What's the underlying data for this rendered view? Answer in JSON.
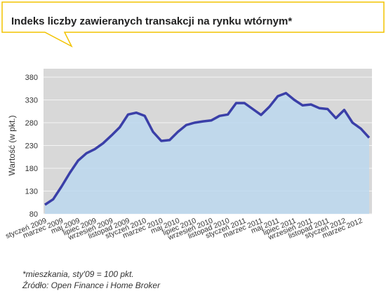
{
  "title": "Indeks liczby zawieranych transakcji na rynku wtórnym*",
  "colors": {
    "accent": "#f2c300",
    "line": "#3a3fa8",
    "area": "#bcd8ef",
    "plot_bg": "#d8d8d8",
    "grid": "#f4f4f4"
  },
  "chart_data": {
    "type": "area",
    "title": "Indeks liczby zawieranych transakcji na rynku wtórnym*",
    "xlabel": "",
    "ylabel": "Wartość (w pkt.)",
    "ylim": [
      80,
      380
    ],
    "yticks": [
      80,
      130,
      180,
      230,
      280,
      330,
      380
    ],
    "grid": true,
    "x": [
      "sty 2009",
      "lut 2009",
      "mar 2009",
      "kwi 2009",
      "maj 2009",
      "cze 2009",
      "lip 2009",
      "sie 2009",
      "wrz 2009",
      "paź 2009",
      "lis 2009",
      "gru 2009",
      "sty 2010",
      "lut 2010",
      "mar 2010",
      "kwi 2010",
      "maj 2010",
      "cze 2010",
      "lip 2010",
      "sie 2010",
      "wrz 2010",
      "paź 2010",
      "lis 2010",
      "gru 2010",
      "sty 2011",
      "lut 2011",
      "mar 2011",
      "kwi 2011",
      "maj 2011",
      "cze 2011",
      "lip 2011",
      "sie 2011",
      "wrz 2011",
      "paź 2011",
      "lis 2011",
      "gru 2011",
      "sty 2012",
      "lut 2012",
      "mar 2012",
      "kwi 2012"
    ],
    "tick_labels": [
      "styczeń 2009",
      "marzec 2009",
      "maj 2009",
      "lipiec 2009",
      "wrzesień 2009",
      "listopad 2009",
      "styczeń 2010",
      "marzec 2010",
      "maj 2010",
      "lipiec 2010",
      "wrzesień 2010",
      "listopad 2010",
      "styczeń 2011",
      "marzec 2011",
      "maj 2011",
      "lipiec 2011",
      "wrzesień 2011",
      "listopad 2011",
      "styczeń 2012",
      "marzec 2012"
    ],
    "series": [
      {
        "values": [
          100,
          112,
          140,
          170,
          197,
          213,
          222,
          235,
          252,
          270,
          298,
          302,
          295,
          260,
          240,
          242,
          260,
          275,
          280,
          283,
          285,
          295,
          298,
          323,
          323,
          310,
          297,
          315,
          338,
          345,
          330,
          318,
          320,
          312,
          310,
          290,
          308,
          280,
          267,
          247
        ]
      }
    ]
  },
  "footnote": {
    "line1": "*mieszkania, sty'09 = 100 pkt.",
    "line2": "Źródło: Open Finance i Home Broker"
  }
}
